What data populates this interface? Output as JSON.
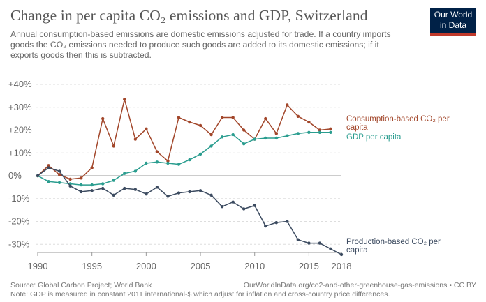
{
  "header": {
    "title": "Change in per capita CO₂ emissions and GDP, Switzerland",
    "subtitle": "Annual consumption-based emissions are domestic emissions adjusted for trade. If a country imports goods the CO₂ emissions needed to produce such goods are added to its domestic emissions; if it exports goods then this is subtracted.",
    "logo_line1": "Our World",
    "logo_line2": "in Data"
  },
  "footer": {
    "source": "Source: Global Carbon Project; World Bank",
    "url": "OurWorldInData.org/co2-and-other-greenhouse-gas-emissions • CC BY",
    "note": "Note: GDP is measured in constant 2011 international-$ which adjust for inflation and cross-country price differences."
  },
  "chart_data": {
    "type": "line",
    "x_ticks": [
      1990,
      1995,
      2000,
      2005,
      2010,
      2015,
      2018
    ],
    "y_ticks": [
      "+40%",
      "+30%",
      "+20%",
      "+10%",
      "0%",
      "-10%",
      "-20%",
      "-30%"
    ],
    "xlim": [
      1990,
      2018
    ],
    "ylim": [
      -35,
      40
    ],
    "grid": "horizontal dashed",
    "series": [
      {
        "name": "Consumption-based CO₂ per capita",
        "label_lines": [
          "Consumption-based CO₂ per",
          "capita"
        ],
        "color": "#a2462a",
        "x": [
          1990,
          1991,
          1992,
          1993,
          1994,
          1995,
          1996,
          1997,
          1998,
          1999,
          2000,
          2001,
          2002,
          2003,
          2004,
          2005,
          2006,
          2007,
          2008,
          2009,
          2010,
          2011,
          2012,
          2013,
          2014,
          2015,
          2016,
          2017
        ],
        "y": [
          0,
          4.5,
          0.5,
          -1.5,
          -1,
          3.5,
          25,
          13,
          33.5,
          16,
          20.5,
          10.5,
          6.5,
          25.5,
          23.5,
          22,
          18,
          25.5,
          25.5,
          20,
          16,
          25,
          18.5,
          31,
          26,
          23.5,
          20,
          20.5
        ]
      },
      {
        "name": "GDP per capita",
        "label_lines": [
          "GDP per capita"
        ],
        "color": "#2a9d8f",
        "x": [
          1990,
          1991,
          1992,
          1993,
          1994,
          1995,
          1996,
          1997,
          1998,
          1999,
          2000,
          2001,
          2002,
          2003,
          2004,
          2005,
          2006,
          2007,
          2008,
          2009,
          2010,
          2011,
          2012,
          2013,
          2014,
          2015,
          2016,
          2017
        ],
        "y": [
          0,
          -2.5,
          -3,
          -3.5,
          -4,
          -4,
          -3.5,
          -2,
          1,
          2,
          5.5,
          6,
          5.5,
          5,
          7,
          9.5,
          13,
          17,
          18,
          14,
          16,
          16.5,
          16.5,
          17.5,
          18.5,
          19,
          19,
          19
        ]
      },
      {
        "name": "Production-based CO₂ per capita",
        "label_lines": [
          "Production-based CO₂ per",
          "capita"
        ],
        "color": "#3c4b60",
        "x": [
          1990,
          1991,
          1992,
          1993,
          1994,
          1995,
          1996,
          1997,
          1998,
          1999,
          2000,
          2001,
          2002,
          2003,
          2004,
          2005,
          2006,
          2007,
          2008,
          2009,
          2010,
          2011,
          2012,
          2013,
          2014,
          2015,
          2016,
          2017,
          2018
        ],
        "y": [
          0,
          3.5,
          2,
          -4.5,
          -7,
          -6.5,
          -5.5,
          -8.5,
          -5.5,
          -6,
          -8,
          -5,
          -9,
          -7.5,
          -7,
          -6.5,
          -8.5,
          -13.5,
          -11.5,
          -14.5,
          -13,
          -22,
          -20.5,
          -20,
          -28,
          -29.5,
          -29.5,
          -32,
          -34.5
        ]
      }
    ]
  }
}
